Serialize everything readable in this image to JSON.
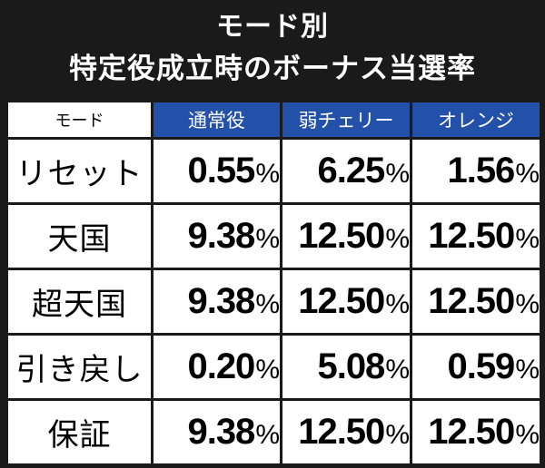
{
  "title": {
    "line1": "モード別",
    "line2": "特定役成立時のボーナス当選率"
  },
  "table": {
    "corner_label": "モード",
    "columns": [
      "通常役",
      "弱チェリー",
      "オレンジ"
    ],
    "rows": [
      {
        "mode": "リセット",
        "values": [
          "0.55",
          "6.25",
          "1.56"
        ]
      },
      {
        "mode": "天国",
        "values": [
          "9.38",
          "12.50",
          "12.50"
        ]
      },
      {
        "mode": "超天国",
        "values": [
          "9.38",
          "12.50",
          "12.50"
        ]
      },
      {
        "mode": "引き戻し",
        "values": [
          "0.20",
          "5.08",
          "0.59"
        ]
      },
      {
        "mode": "保証",
        "values": [
          "9.38",
          "12.50",
          "12.50"
        ]
      }
    ],
    "unit": "%"
  },
  "colors": {
    "background": "#1a1a1a",
    "header_blue": "#2350a8",
    "cell": "#ffffff"
  }
}
